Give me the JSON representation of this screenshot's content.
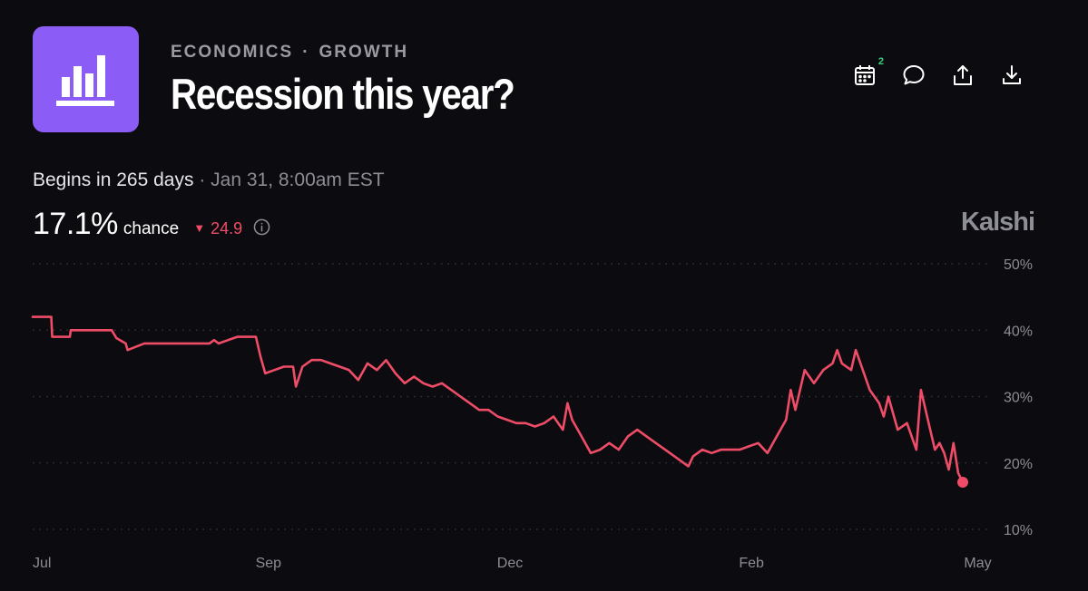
{
  "header": {
    "category": "ECONOMICS",
    "subcategory": "GROWTH",
    "separator": "·",
    "title": "Recession this year?",
    "logo_icon": "bar-chart-icon",
    "accent_color": "#8b5cf6"
  },
  "actions": {
    "calendar_icon": "calendar-icon",
    "calendar_badge": "2",
    "comment_icon": "chat-bubble-icon",
    "share_icon": "share-icon",
    "download_icon": "download-icon"
  },
  "schedule": {
    "begins": "Begins in 265 days",
    "separator": "·",
    "datetime": "Jan 31, 8:00am EST"
  },
  "stats": {
    "chance_value": "17.1%",
    "chance_label": "chance",
    "delta_value": "24.9",
    "delta_direction": "down",
    "delta_color": "#ef4d67"
  },
  "brand": "Kalshi",
  "chart_data": {
    "type": "line",
    "ylim": [
      10,
      50
    ],
    "yticks": [
      "50%",
      "40%",
      "30%",
      "20%",
      "10%"
    ],
    "ytick_values": [
      50,
      40,
      30,
      20,
      10
    ],
    "xticks": [
      "Jul",
      "Sep",
      "Dec",
      "Feb",
      "May"
    ],
    "xtick_positions": [
      0,
      0.247,
      0.5,
      0.753,
      0.99
    ],
    "grid": true,
    "line_color": "#ef4d67",
    "series": [
      {
        "x": [
          0,
          0.02,
          0.021,
          0.04,
          0.041,
          0.085,
          0.09,
          0.1,
          0.102,
          0.12,
          0.19,
          0.195,
          0.2,
          0.21,
          0.22,
          0.24,
          0.245,
          0.25,
          0.26,
          0.27,
          0.28,
          0.283,
          0.29,
          0.3,
          0.31,
          0.32,
          0.33,
          0.34,
          0.35,
          0.36,
          0.37,
          0.38,
          0.39,
          0.4,
          0.41,
          0.42,
          0.43,
          0.44,
          0.45,
          0.46,
          0.47,
          0.48,
          0.49,
          0.5,
          0.51,
          0.52,
          0.53,
          0.54,
          0.55,
          0.56,
          0.57,
          0.575,
          0.58,
          0.59,
          0.6,
          0.61,
          0.62,
          0.63,
          0.64,
          0.65,
          0.66,
          0.67,
          0.68,
          0.69,
          0.7,
          0.705,
          0.71,
          0.72,
          0.73,
          0.74,
          0.75,
          0.76,
          0.77,
          0.78,
          0.79,
          0.8,
          0.81,
          0.815,
          0.82,
          0.83,
          0.84,
          0.85,
          0.86,
          0.865,
          0.87,
          0.88,
          0.885,
          0.89,
          0.9,
          0.91,
          0.915,
          0.92,
          0.93,
          0.94,
          0.95,
          0.955,
          0.96,
          0.965,
          0.97,
          0.975,
          0.98,
          0.985,
          0.99,
          0.995,
          1.0
        ],
        "values": [
          42,
          42,
          39,
          39,
          40,
          40,
          38.8,
          38,
          37,
          38,
          38,
          38.5,
          38,
          38.5,
          39,
          39,
          36,
          33.5,
          34,
          34.5,
          34.5,
          31.5,
          34.5,
          35.5,
          35.5,
          35,
          34.5,
          34,
          32.5,
          35,
          34,
          35.5,
          33.5,
          32,
          33,
          32,
          31.5,
          32,
          31,
          30,
          29,
          28,
          28,
          27,
          26.5,
          26,
          26,
          25.5,
          26,
          27,
          25,
          29,
          26.5,
          24,
          21.5,
          22,
          23,
          22,
          24,
          25,
          24,
          23,
          22,
          21,
          20,
          19.5,
          21,
          22,
          21.5,
          22,
          22,
          22,
          22.5,
          23,
          21.5,
          24,
          26.5,
          31,
          28,
          34,
          32,
          34,
          35,
          37,
          35,
          34,
          37,
          35,
          31,
          29,
          27,
          30,
          25,
          26,
          22,
          31,
          28,
          25,
          22,
          23,
          21.5,
          19,
          23,
          18.5,
          17.1
        ]
      }
    ]
  }
}
